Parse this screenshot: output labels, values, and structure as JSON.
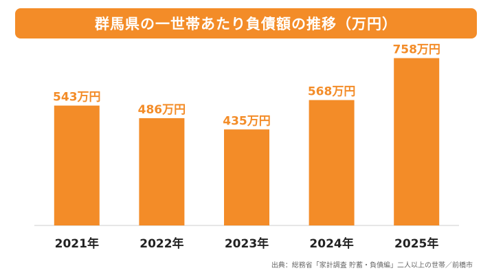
{
  "title": "群馬県の一世帯あたり負債額の推移（万円）",
  "source": "出典：総務省「家計調査 貯蓄・負債編」二人以上の世帯／前橋市",
  "colors": {
    "accent": "#f38c28",
    "axis": "#cccccc",
    "text": "#222222"
  },
  "chart_data": {
    "type": "bar",
    "title": "群馬県の一世帯あたり負債額の推移（万円）",
    "categories": [
      "2021年",
      "2022年",
      "2023年",
      "2024年",
      "2025年"
    ],
    "values": [
      543,
      486,
      435,
      568,
      758
    ],
    "value_labels": [
      "543万円",
      "486万円",
      "435万円",
      "568万円",
      "758万円"
    ],
    "unit": "万円",
    "ylim": [
      0,
      850
    ],
    "grid": false,
    "legend": "none"
  }
}
